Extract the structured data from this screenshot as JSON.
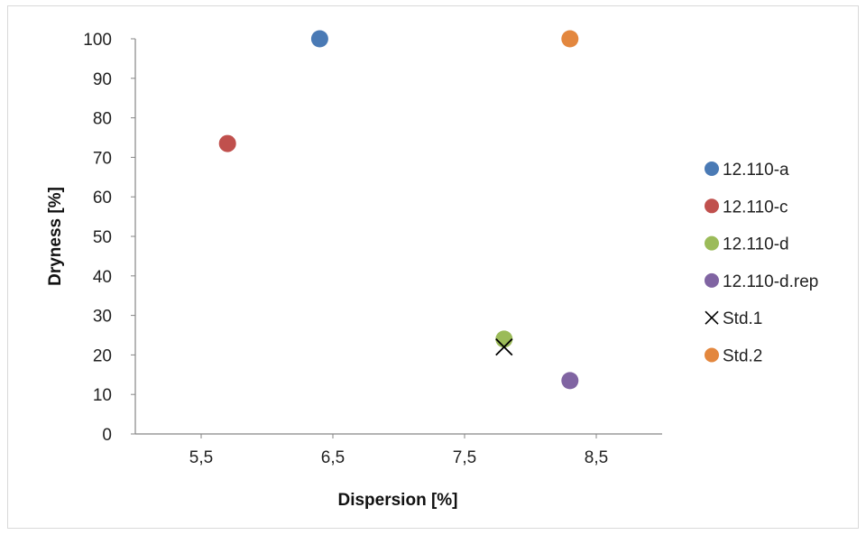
{
  "chart_data": {
    "type": "scatter",
    "title": "",
    "xlabel": "Dispersion [%]",
    "ylabel": "Dryness [%]",
    "xlim": [
      5.0,
      9.0
    ],
    "ylim": [
      0,
      100
    ],
    "x_ticks": [
      5.5,
      6.5,
      7.5,
      8.5
    ],
    "x_tick_labels": [
      "5,5",
      "6,5",
      "7,5",
      "8,5"
    ],
    "y_ticks": [
      0,
      10,
      20,
      30,
      40,
      50,
      60,
      70,
      80,
      90,
      100
    ],
    "y_tick_labels": [
      "0",
      "10",
      "20",
      "30",
      "40",
      "50",
      "60",
      "70",
      "80",
      "90",
      "100"
    ],
    "grid": false,
    "legend_position": "right",
    "series": [
      {
        "name": "12.110-a",
        "marker": "circle",
        "color": "#4a7ab5",
        "points": [
          {
            "x": 6.4,
            "y": 100
          }
        ]
      },
      {
        "name": "12.110-c",
        "marker": "circle",
        "color": "#c0504d",
        "points": [
          {
            "x": 5.7,
            "y": 73.5
          }
        ]
      },
      {
        "name": "12.110-d",
        "marker": "circle",
        "color": "#9bbb59",
        "points": [
          {
            "x": 7.8,
            "y": 24
          }
        ]
      },
      {
        "name": "12.110-d.rep",
        "marker": "circle",
        "color": "#8064a2",
        "points": [
          {
            "x": 8.3,
            "y": 13.5
          }
        ]
      },
      {
        "name": "Std.1",
        "marker": "x",
        "color": "#000000",
        "points": [
          {
            "x": 7.8,
            "y": 22
          }
        ]
      },
      {
        "name": "Std.2",
        "marker": "circle",
        "color": "#e3873e",
        "points": [
          {
            "x": 8.3,
            "y": 100
          }
        ]
      }
    ]
  }
}
